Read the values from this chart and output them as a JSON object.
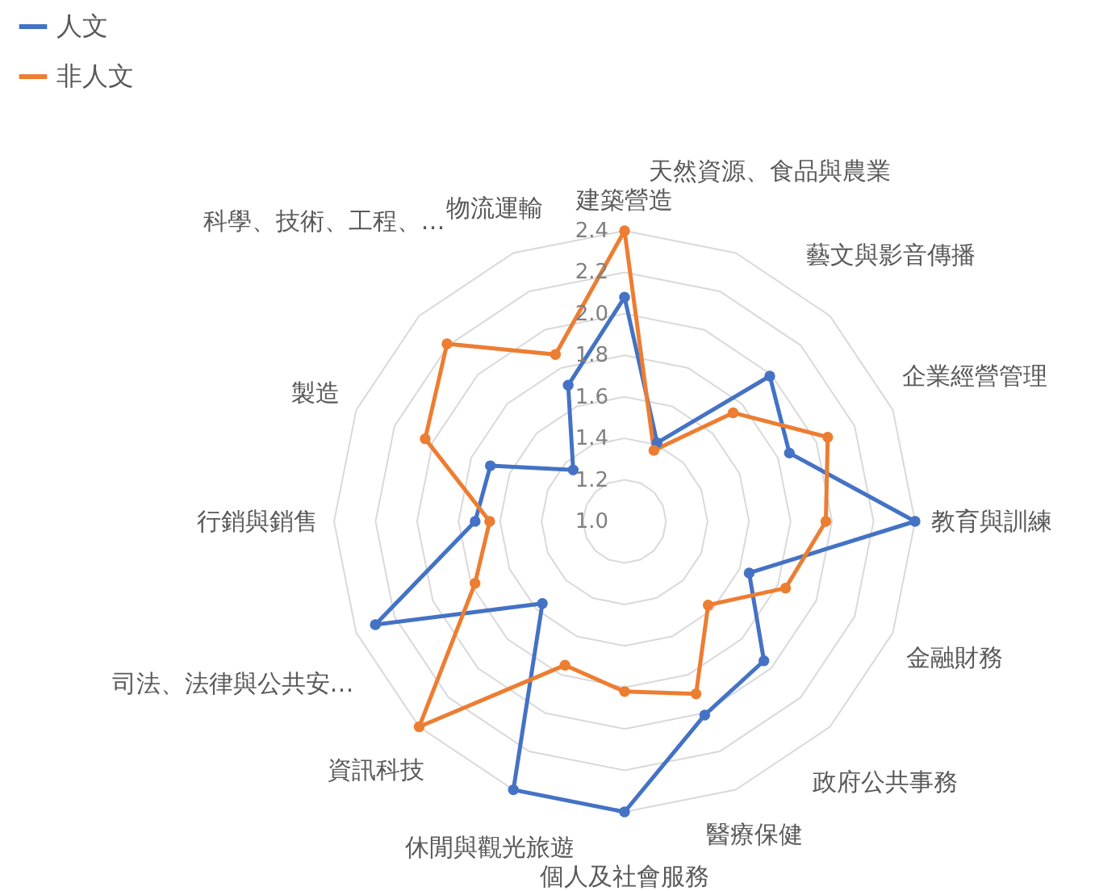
{
  "chart_data": {
    "type": "radar",
    "categories": [
      "建築營造",
      "天然資源、食品與農業",
      "藝文與影音傳播",
      "企業經營管理",
      "教育與訓練",
      "金融財務",
      "政府公共事務",
      "醫療保健",
      "個人及社會服務",
      "休閒與觀光旅遊",
      "資訊科技",
      "司法、法律與公共安…",
      "行銷與銷售",
      "製造",
      "科學、技術、工程、…",
      "物流運輸"
    ],
    "series": [
      {
        "name": "人文",
        "color": "#4472c4",
        "values": [
          2.08,
          1.41,
          1.99,
          1.86,
          2.4,
          1.65,
          1.95,
          2.01,
          2.4,
          2.4,
          1.56,
          2.3,
          1.72,
          1.7,
          1.35,
          1.71
        ]
      },
      {
        "name": "非人文",
        "color": "#ed7d31",
        "values": [
          2.4,
          1.37,
          1.74,
          2.06,
          1.97,
          1.84,
          1.57,
          1.9,
          1.82,
          1.75,
          2.4,
          1.78,
          1.65,
          2.04,
          2.21,
          1.87
        ]
      }
    ],
    "ylim": [
      1.0,
      2.4
    ],
    "yticks": [
      {
        "value": 1.0,
        "label": "1.0"
      },
      1.2,
      1.4,
      1.6,
      1.8,
      {
        "value": 2.0,
        "label": "2.0"
      },
      2.2,
      2.4
    ],
    "grid": true,
    "legend": "top left",
    "marker": "circle",
    "line_style": "solid"
  }
}
